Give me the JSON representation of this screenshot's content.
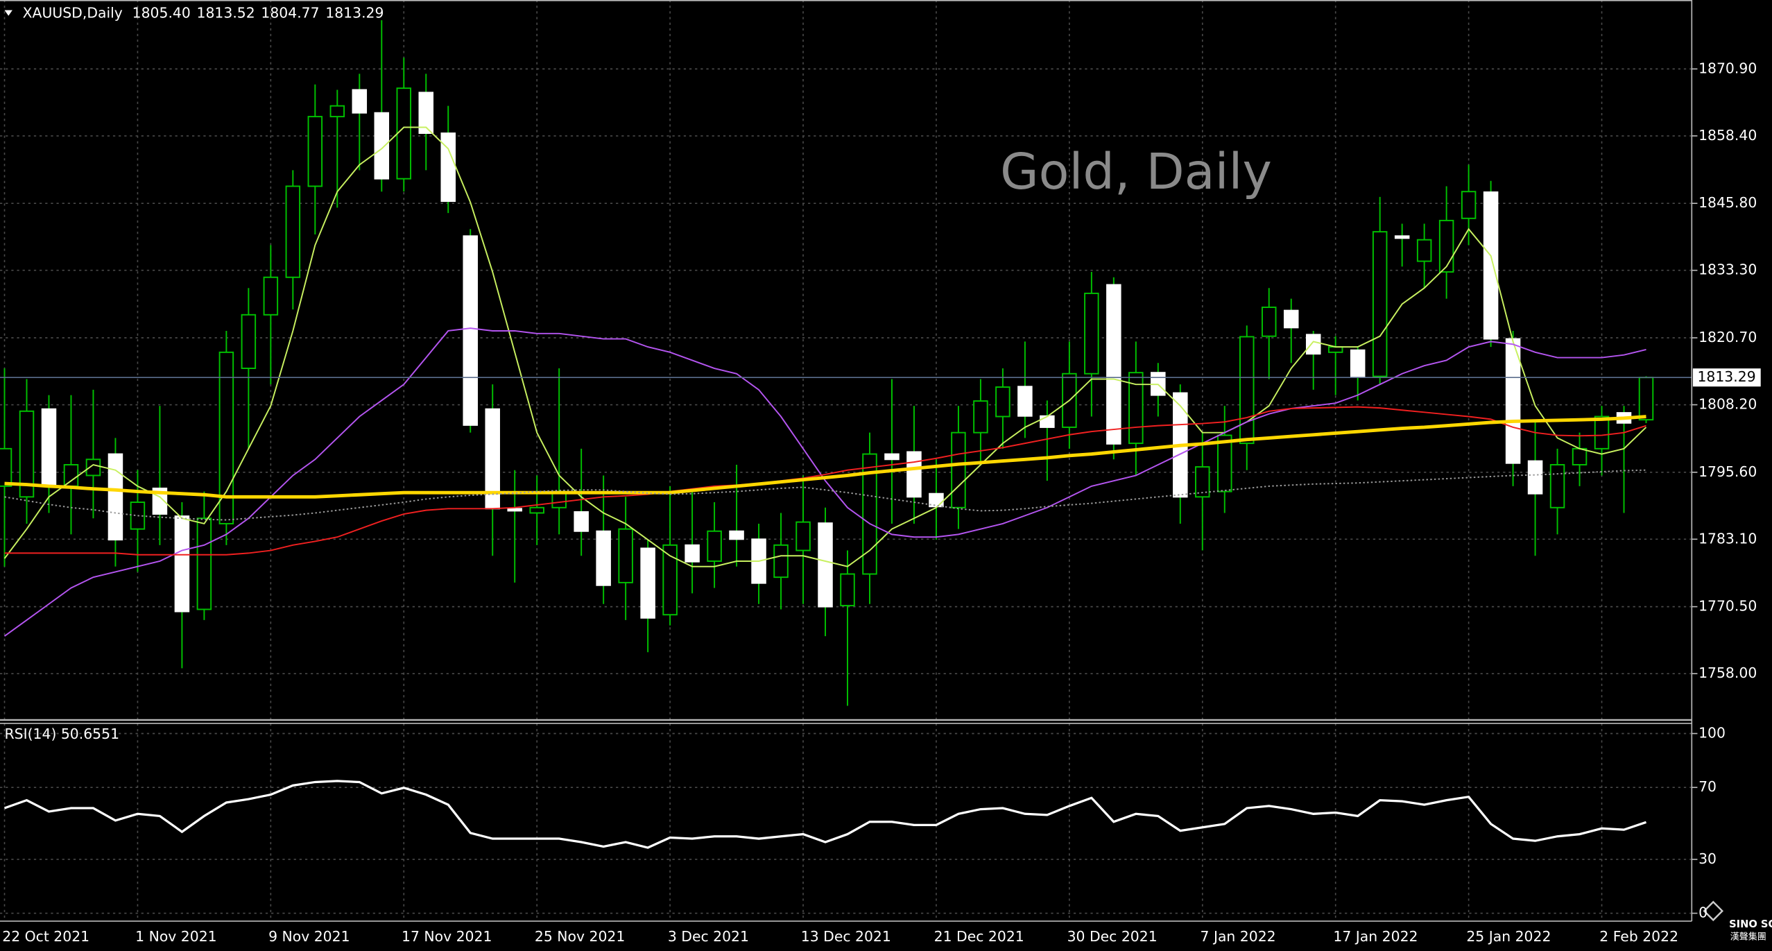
{
  "chart_data": [
    {
      "type": "candlestick",
      "symbol": "XAUUSD,Daily",
      "ohlc_labels": [
        "1805.40",
        "1813.52",
        "1804.77",
        "1813.29"
      ],
      "title": "Gold, Daily",
      "categories": [
        "22 Oct 2021",
        null,
        null,
        null,
        null,
        null,
        "1 Nov 2021",
        null,
        null,
        null,
        null,
        null,
        "9 Nov 2021",
        null,
        null,
        null,
        null,
        null,
        "17 Nov 2021",
        null,
        null,
        null,
        null,
        null,
        "25 Nov 2021",
        null,
        null,
        null,
        null,
        null,
        "3 Dec 2021",
        null,
        null,
        null,
        null,
        null,
        "13 Dec 2021",
        null,
        null,
        null,
        null,
        null,
        "21 Dec 2021",
        null,
        null,
        null,
        null,
        null,
        "30 Dec 2021",
        null,
        null,
        null,
        null,
        null,
        "7 Jan 2022",
        null,
        null,
        null,
        null,
        null,
        "17 Jan 2022",
        null,
        null,
        null,
        null,
        null,
        "25 Jan 2022",
        null,
        null,
        null,
        null,
        null,
        "2 Feb 2022",
        null,
        null
      ],
      "open": [
        1793,
        1791,
        1807.4,
        1793,
        1795,
        1799,
        1785,
        1792.6,
        1787.4,
        1770,
        1786,
        1815,
        1825,
        1832,
        1849,
        1862,
        1867,
        1862.7,
        1850.4,
        1866.5,
        1858.9,
        1839.7,
        1807.4,
        1788.8,
        1788,
        1789,
        1788.2,
        1784.6,
        1775,
        1781.4,
        1769,
        1782,
        1779,
        1784.6,
        1783.1,
        1776,
        1781,
        1786.1,
        1770.7,
        1776.6,
        1799,
        1799.4,
        1791.6,
        1789,
        1803,
        1806,
        1811.6,
        1806.1,
        1804,
        1814,
        1830.6,
        1801,
        1814.2,
        1810.4,
        1791,
        1792,
        1801,
        1821,
        1825.8,
        1821.3,
        1818,
        1818.4,
        1813.5,
        1839.7,
        1835,
        1833,
        1843,
        1847.9,
        1820.5,
        1797.7,
        1789,
        1797,
        1800,
        1806.7,
        1805.4
      ],
      "high": [
        1815,
        1813,
        1810,
        1810,
        1811,
        1802,
        1796,
        1808,
        1790,
        1792,
        1822,
        1830,
        1838,
        1852,
        1868,
        1867,
        1870,
        1880,
        1873,
        1870,
        1864,
        1841,
        1812,
        1796,
        1795,
        1815,
        1800,
        1795,
        1791,
        1783,
        1793,
        1792,
        1790,
        1797,
        1786,
        1788,
        1795,
        1789,
        1781,
        1803,
        1813,
        1808,
        1798,
        1808,
        1813,
        1815,
        1820,
        1809,
        1820,
        1833,
        1832,
        1820,
        1816,
        1812,
        1803,
        1808,
        1823,
        1830,
        1828,
        1822,
        1821,
        1819,
        1847,
        1842,
        1842,
        1849,
        1853,
        1850,
        1822,
        1805,
        1800,
        1803,
        1808,
        1808,
        1813.52
      ],
      "low": [
        1778,
        1786,
        1788,
        1784,
        1787,
        1778,
        1777,
        1782,
        1759,
        1768,
        1782,
        1800,
        1812,
        1826,
        1840,
        1845,
        1852,
        1848,
        1848,
        1852,
        1844,
        1803,
        1780,
        1775,
        1782,
        1784,
        1780,
        1771,
        1768,
        1762,
        1767,
        1773,
        1774,
        1778,
        1771,
        1770,
        1771,
        1765,
        1752,
        1771,
        1786,
        1786,
        1783,
        1785,
        1797,
        1800,
        1802,
        1794,
        1800,
        1806,
        1798,
        1795,
        1806,
        1786,
        1781,
        1788,
        1796,
        1813,
        1816,
        1811,
        1810,
        1809,
        1812,
        1834,
        1830,
        1828,
        1838,
        1819,
        1793,
        1780,
        1784,
        1793,
        1795,
        1788,
        1804.77
      ],
      "close": [
        1800,
        1807,
        1793,
        1797,
        1798,
        1783,
        1790,
        1787.8,
        1769.6,
        1787,
        1818,
        1825,
        1832,
        1849,
        1862,
        1864,
        1862.7,
        1850.4,
        1867.3,
        1858.9,
        1846.2,
        1804.4,
        1788.8,
        1788.4,
        1789,
        1792,
        1784.6,
        1774.5,
        1785,
        1768.4,
        1782,
        1778.9,
        1784.6,
        1783.1,
        1774.9,
        1782,
        1786.3,
        1770.5,
        1776.6,
        1799,
        1798,
        1791,
        1789.2,
        1803,
        1808.9,
        1811.5,
        1806.1,
        1804,
        1814,
        1829,
        1800.9,
        1814.2,
        1810,
        1791,
        1796.6,
        1802.5,
        1820.9,
        1826.4,
        1822.6,
        1817.7,
        1819,
        1813.5,
        1840.5,
        1839.3,
        1839,
        1842.6,
        1848,
        1820.5,
        1797.3,
        1791.6,
        1797,
        1800,
        1806,
        1804.8,
        1813.29
      ],
      "series": [
        {
          "color": "#c8f060",
          "style": "solid",
          "values": [
            1779.5,
            1785,
            1791,
            1794,
            1797,
            1796,
            1793,
            1791,
            1787,
            1786,
            1792,
            1800,
            1808,
            1822,
            1838,
            1848,
            1853,
            1856,
            1860,
            1860,
            1856,
            1846,
            1833,
            1818,
            1803,
            1795,
            1791,
            1788,
            1786,
            1783,
            1780,
            1778,
            1778,
            1779,
            1779,
            1780,
            1780,
            1779,
            1778,
            1781,
            1785,
            1787,
            1789,
            1793,
            1797,
            1801,
            1804,
            1806,
            1809,
            1813,
            1813,
            1812,
            1812,
            1808,
            1803,
            1803,
            1805,
            1808,
            1815,
            1820,
            1819,
            1819,
            1821,
            1827,
            1830,
            1834,
            1841,
            1836,
            1820,
            1808,
            1802,
            1800,
            1799,
            1800,
            1804
          ]
        },
        {
          "color": "#b455f0",
          "style": "solid",
          "values": [
            1765,
            1768,
            1771,
            1774,
            1776,
            1777,
            1778,
            1779,
            1781,
            1782,
            1784,
            1787,
            1791,
            1795,
            1798,
            1802,
            1806,
            1809,
            1812,
            1817,
            1822,
            1822.5,
            1822,
            1822,
            1821.5,
            1821.5,
            1821,
            1820.5,
            1820.5,
            1819,
            1818,
            1816.5,
            1815,
            1814,
            1811,
            1806,
            1800,
            1794,
            1789,
            1786,
            1784,
            1783.5,
            1783.5,
            1784,
            1785,
            1786,
            1787.5,
            1789,
            1791,
            1793,
            1794,
            1795,
            1797,
            1799,
            1801,
            1803,
            1805,
            1806.5,
            1807.5,
            1808,
            1808.5,
            1810,
            1812,
            1814,
            1815.5,
            1816.5,
            1819,
            1820,
            1819.5,
            1818,
            1817,
            1817,
            1817,
            1817.5,
            1818.5
          ]
        },
        {
          "color": "#f02020",
          "style": "solid",
          "values": [
            1780.5,
            1780.5,
            1780.5,
            1780.5,
            1780.5,
            1780.5,
            1780.2,
            1780.2,
            1780.2,
            1780.2,
            1780.2,
            1780.5,
            1781,
            1782,
            1782.7,
            1783.5,
            1785,
            1786.5,
            1787.8,
            1788.5,
            1788.8,
            1788.8,
            1788.8,
            1789,
            1789.5,
            1790,
            1790.5,
            1791,
            1791.2,
            1791.5,
            1792,
            1792.5,
            1793,
            1793.2,
            1793.5,
            1794,
            1794.5,
            1795.2,
            1796,
            1796.5,
            1797,
            1797.5,
            1798.2,
            1799,
            1799.6,
            1800.2,
            1801,
            1801.8,
            1802.6,
            1803.2,
            1803.6,
            1804,
            1804.3,
            1804.5,
            1804.7,
            1805,
            1805.8,
            1807,
            1807.5,
            1807.6,
            1807.7,
            1807.8,
            1807.6,
            1807.2,
            1806.8,
            1806.4,
            1806,
            1805.5,
            1804,
            1803,
            1802.5,
            1802.4,
            1802.5,
            1803,
            1804.3
          ]
        },
        {
          "color": "#ffd700",
          "style": "thick",
          "values": [
            1793.5,
            1793.3,
            1793,
            1792.8,
            1792.5,
            1792.3,
            1792,
            1791.8,
            1791.6,
            1791.4,
            1791,
            1791,
            1791,
            1791,
            1791,
            1791.2,
            1791.4,
            1791.6,
            1791.8,
            1791.8,
            1791.8,
            1791.8,
            1791.8,
            1791.8,
            1791.8,
            1791.8,
            1791.8,
            1791.8,
            1791.8,
            1791.8,
            1791.8,
            1792.2,
            1792.6,
            1793,
            1793.4,
            1793.8,
            1794.2,
            1794.6,
            1795,
            1795.5,
            1795.9,
            1796.3,
            1796.7,
            1797.1,
            1797.4,
            1797.7,
            1798,
            1798.3,
            1798.7,
            1799,
            1799.4,
            1799.8,
            1800.2,
            1800.6,
            1800.9,
            1801.3,
            1801.7,
            1802,
            1802.3,
            1802.6,
            1802.9,
            1803.2,
            1803.5,
            1803.8,
            1804,
            1804.3,
            1804.6,
            1804.9,
            1805.1,
            1805.2,
            1805.3,
            1805.4,
            1805.5,
            1805.7,
            1806
          ]
        },
        {
          "color": "#9a9a9a",
          "style": "dotted",
          "values": [
            1791,
            1790.3,
            1789.6,
            1789,
            1788.6,
            1788,
            1787.5,
            1787.2,
            1787,
            1786.8,
            1786.7,
            1787,
            1787.3,
            1787.6,
            1788,
            1788.5,
            1789,
            1789.5,
            1790,
            1790.6,
            1791,
            1791.3,
            1791.5,
            1791.7,
            1792,
            1792.2,
            1792.3,
            1792.3,
            1792,
            1791.7,
            1791.5,
            1791.6,
            1791.8,
            1792,
            1792.3,
            1792.6,
            1792.8,
            1792.3,
            1791.8,
            1791.2,
            1790.6,
            1790,
            1789.4,
            1788.8,
            1788.4,
            1788.5,
            1788.8,
            1789.2,
            1789.5,
            1789.8,
            1790.2,
            1790.6,
            1791,
            1791.4,
            1791.8,
            1792.2,
            1792.6,
            1793,
            1793.2,
            1793.4,
            1793.5,
            1793.6,
            1793.8,
            1794,
            1794.2,
            1794.4,
            1794.6,
            1794.8,
            1795,
            1795.1,
            1795.3,
            1795.5,
            1795.7,
            1795.9,
            1796
          ]
        }
      ],
      "bullish_color": "#00c000",
      "bearish_color": "#ffffff",
      "last_price": 1813.29,
      "ylim": [
        1749.56,
        1883.77
      ],
      "yticks": [
        {
          "value": 1870.9,
          "label": "1870.90"
        },
        {
          "value": 1858.4,
          "label": "1858.40"
        },
        {
          "value": 1845.8,
          "label": "1845.80"
        },
        {
          "value": 1833.3,
          "label": "1833.30"
        },
        {
          "value": 1820.7,
          "label": "1820.70"
        },
        {
          "value": 1808.2,
          "label": "1808.20"
        },
        {
          "value": 1795.6,
          "label": "1795.60"
        },
        {
          "value": 1783.1,
          "label": "1783.10"
        },
        {
          "value": 1770.5,
          "label": "1770.50"
        },
        {
          "value": 1758.0,
          "label": "1758.00"
        }
      ],
      "grid": true
    },
    {
      "type": "line",
      "label": "RSI(14) 50.6551",
      "color": "#ffffff",
      "values": [
        58.5,
        62.9,
        56.6,
        58.5,
        58.5,
        51.6,
        55.3,
        54.1,
        45.3,
        54.1,
        61.6,
        63.5,
        66,
        71.1,
        73,
        73.6,
        73,
        66.7,
        69.8,
        66,
        60.4,
        44.7,
        41.5,
        41.5,
        41.5,
        41.5,
        39.6,
        37.1,
        39.6,
        36.5,
        42.1,
        41.5,
        42.8,
        42.8,
        41.5,
        42.8,
        44,
        39.6,
        44,
        50.9,
        50.9,
        49.1,
        49.1,
        55.3,
        57.9,
        58.5,
        55.3,
        54.7,
        59.7,
        64.2,
        50.9,
        55.3,
        54.1,
        45.9,
        47.8,
        49.7,
        58.5,
        59.7,
        57.9,
        55.3,
        56,
        54.1,
        62.9,
        62.3,
        60.4,
        62.9,
        64.8,
        49.7,
        41.5,
        40.3,
        42.8,
        44,
        47.2,
        46.5,
        50.6551
      ],
      "ylim": [
        0,
        100
      ],
      "yticks": [
        100,
        70,
        30,
        0
      ],
      "grid": true
    }
  ],
  "logo": {
    "name": "SINO SOUND",
    "subtitle": "漢聲集團"
  }
}
